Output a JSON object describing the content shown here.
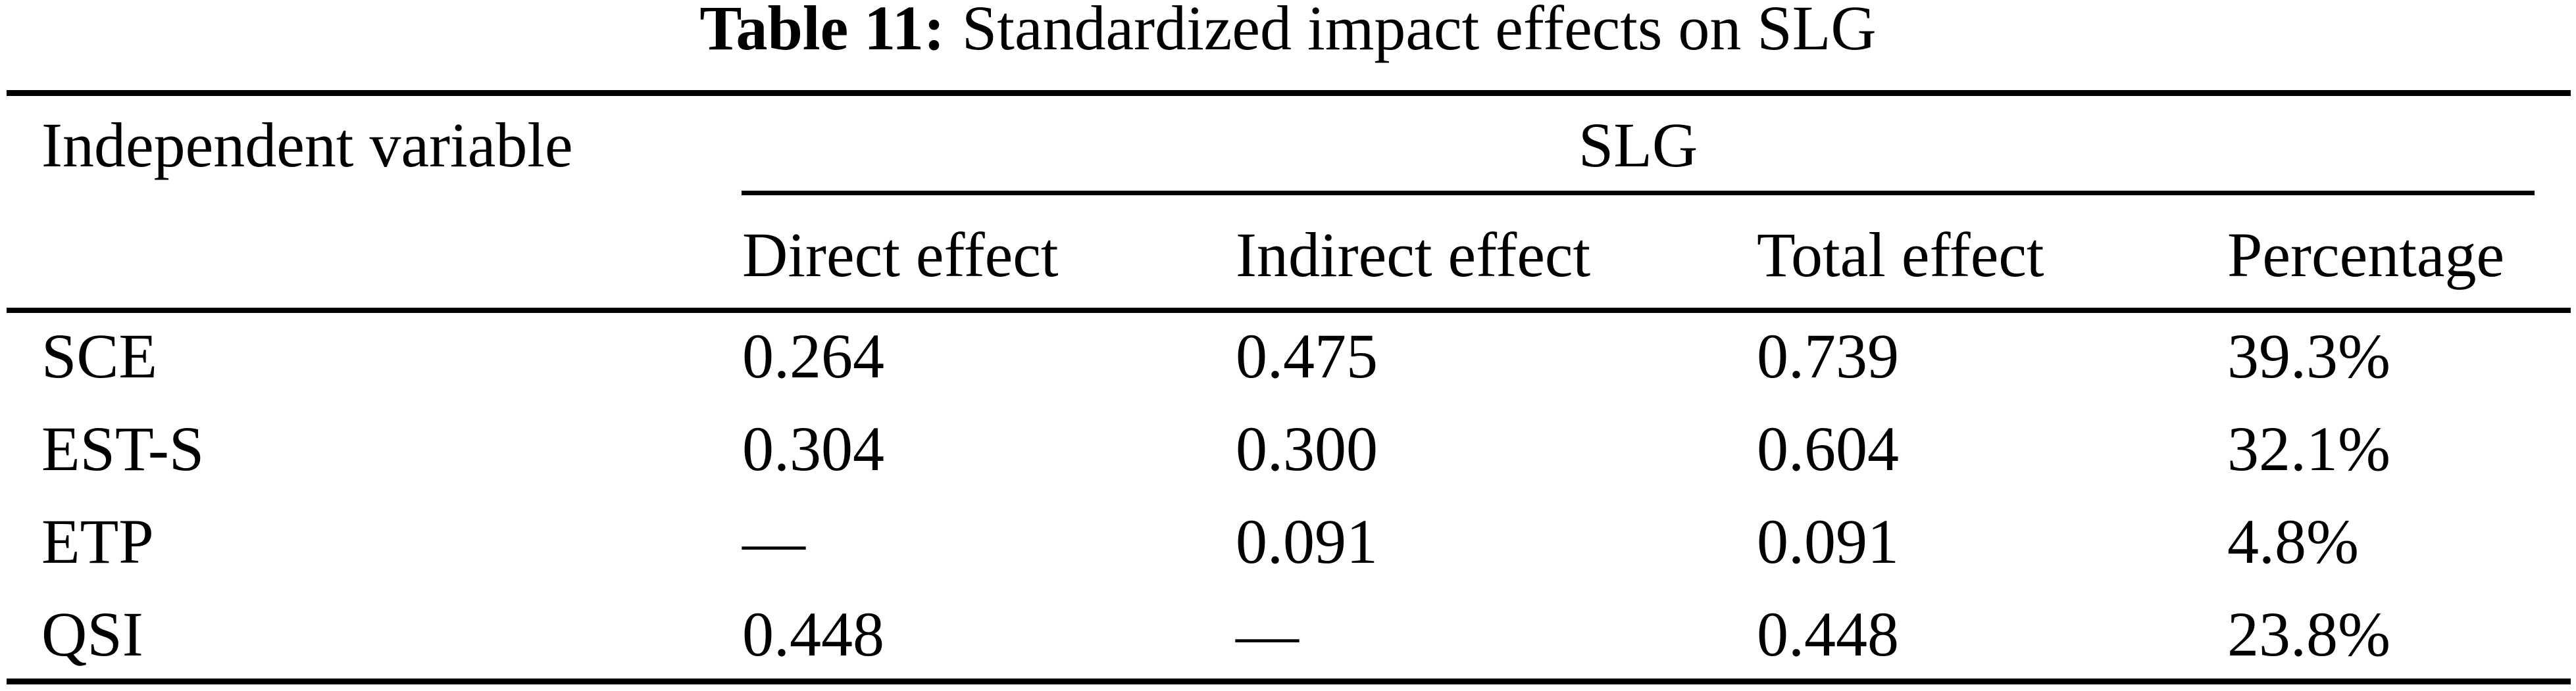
{
  "caption": {
    "label": "Table 11:",
    "text": "Standardized impact effects on SLG"
  },
  "table": {
    "independent_variable_header": "Independent variable",
    "span_header": "SLG",
    "sub_headers": [
      "Direct effect",
      "Indirect effect",
      "Total effect",
      "Percentage"
    ],
    "rows": [
      {
        "variable": "SCE",
        "direct": "0.264",
        "indirect": "0.475",
        "total": "0.739",
        "percentage": "39.3%"
      },
      {
        "variable": "EST-S",
        "direct": "0.304",
        "indirect": "0.300",
        "total": "0.604",
        "percentage": "32.1%"
      },
      {
        "variable": "ETP",
        "direct": "—",
        "indirect": "0.091",
        "total": "0.091",
        "percentage": "4.8%"
      },
      {
        "variable": "QSI",
        "direct": "0.448",
        "indirect": "—",
        "total": "0.448",
        "percentage": "23.8%"
      }
    ]
  }
}
